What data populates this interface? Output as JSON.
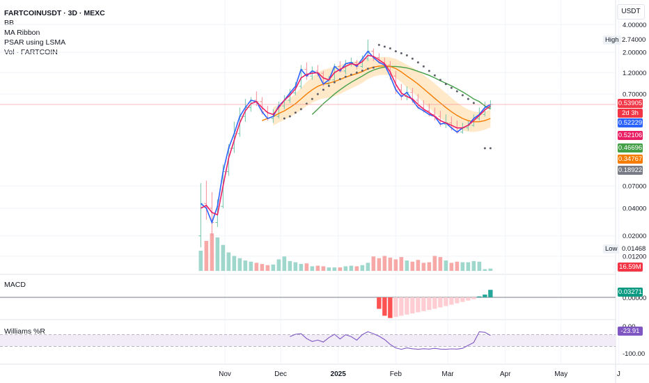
{
  "header": {
    "symbol": "FARTCOINUSDT · 3D · MEXC",
    "indicators": [
      "BB",
      "MA Ribbon",
      "PSAR using LSMA",
      "Vol · FARTCOIN"
    ]
  },
  "axis_unit": "USDT",
  "high_label": "High",
  "high_value": "2.74000",
  "low_label": "Low",
  "low_value": "0.01468",
  "macd_title": "MACD",
  "wr_title": "Williams %R",
  "price_tags": [
    {
      "text": "0.53905",
      "color": "#f23645"
    },
    {
      "text": "2d 3h",
      "color": "#f23645"
    },
    {
      "text": "0.52229",
      "color": "#2962ff"
    },
    {
      "text": "0.52106",
      "color": "#e91e63"
    },
    {
      "text": "0.46696",
      "color": "#43a047"
    },
    {
      "text": "0.34767",
      "color": "#f57c00"
    },
    {
      "text": "0.18922",
      "color": "#787b86"
    }
  ],
  "volume_tag": {
    "text": "16.59M",
    "color": "#f23645"
  },
  "macd_tag": {
    "text": "0.03271",
    "color": "#089981"
  },
  "wr_tag": {
    "text": "-23.91",
    "color": "#7e57c2"
  },
  "chart_data": {
    "type": "candlestick",
    "y_scale": "log",
    "price_ticks": [
      "4.00000",
      "2.00000",
      "1.20000",
      "0.70000",
      "0.07000",
      "0.04000",
      "0.02000",
      "0.01200"
    ],
    "x_ticks": [
      "Nov",
      "Dec",
      "2025",
      "Feb",
      "Mar",
      "Apr",
      "May",
      "J"
    ],
    "macd_ticks": [
      "0.00000"
    ],
    "wr_ticks": [
      "0.00",
      "-100.00"
    ],
    "wr_band": [
      -20,
      -80
    ],
    "dates": [
      "2024-10-19",
      "2024-10-22",
      "2024-10-25",
      "2024-10-28",
      "2024-10-31",
      "2024-11-03",
      "2024-11-06",
      "2024-11-09",
      "2024-11-12",
      "2024-11-15",
      "2024-11-18",
      "2024-11-21",
      "2024-11-24",
      "2024-11-27",
      "2024-11-30",
      "2024-12-03",
      "2024-12-06",
      "2024-12-09",
      "2024-12-12",
      "2024-12-15",
      "2024-12-18",
      "2024-12-21",
      "2024-12-24",
      "2024-12-27",
      "2024-12-30",
      "2025-01-02",
      "2025-01-05",
      "2025-01-08",
      "2025-01-11",
      "2025-01-14",
      "2025-01-17",
      "2025-01-20",
      "2025-01-23",
      "2025-01-26",
      "2025-01-29",
      "2025-02-01",
      "2025-02-04",
      "2025-02-07",
      "2025-02-10",
      "2025-02-13",
      "2025-02-16",
      "2025-02-19",
      "2025-02-22",
      "2025-02-25",
      "2025-02-28",
      "2025-03-03",
      "2025-03-06",
      "2025-03-09",
      "2025-03-12",
      "2025-03-15",
      "2025-03-18",
      "2025-03-21",
      "2025-03-24"
    ],
    "open": [
      0.02,
      0.045,
      0.04,
      0.028,
      0.042,
      0.1,
      0.18,
      0.26,
      0.4,
      0.5,
      0.6,
      0.58,
      0.45,
      0.38,
      0.4,
      0.52,
      0.6,
      0.72,
      0.85,
      1.3,
      1.1,
      1.25,
      1.18,
      0.9,
      1.0,
      1.4,
      1.25,
      1.5,
      1.55,
      1.4,
      1.7,
      2.05,
      1.75,
      1.55,
      1.45,
      1.1,
      0.78,
      0.66,
      0.73,
      0.6,
      0.5,
      0.46,
      0.42,
      0.4,
      0.33,
      0.34,
      0.3,
      0.27,
      0.3,
      0.32,
      0.38,
      0.42,
      0.5
    ],
    "high": [
      0.075,
      0.08,
      0.06,
      0.05,
      0.12,
      0.2,
      0.35,
      0.5,
      0.62,
      0.65,
      0.75,
      0.65,
      0.52,
      0.48,
      0.58,
      0.68,
      0.8,
      0.95,
      1.45,
      1.55,
      1.4,
      1.45,
      1.25,
      1.1,
      1.5,
      1.6,
      1.65,
      1.75,
      1.65,
      1.85,
      2.74,
      2.2,
      1.95,
      1.75,
      1.6,
      1.25,
      0.9,
      0.85,
      0.82,
      0.7,
      0.6,
      0.55,
      0.5,
      0.46,
      0.42,
      0.4,
      0.36,
      0.34,
      0.36,
      0.42,
      0.5,
      0.58,
      0.6
    ],
    "low": [
      0.015,
      0.03,
      0.02,
      0.025,
      0.04,
      0.09,
      0.16,
      0.24,
      0.35,
      0.45,
      0.52,
      0.42,
      0.36,
      0.34,
      0.38,
      0.48,
      0.56,
      0.68,
      0.8,
      1.0,
      1.0,
      1.1,
      0.85,
      0.85,
      0.95,
      1.2,
      1.15,
      1.4,
      1.3,
      1.35,
      1.6,
      1.6,
      1.5,
      1.35,
      1.0,
      0.7,
      0.6,
      0.6,
      0.56,
      0.48,
      0.44,
      0.4,
      0.36,
      0.31,
      0.3,
      0.28,
      0.26,
      0.26,
      0.28,
      0.31,
      0.36,
      0.4,
      0.48
    ],
    "close": [
      0.045,
      0.04,
      0.028,
      0.042,
      0.1,
      0.18,
      0.26,
      0.4,
      0.5,
      0.6,
      0.58,
      0.45,
      0.38,
      0.4,
      0.52,
      0.6,
      0.72,
      0.85,
      1.3,
      1.1,
      1.25,
      1.18,
      0.9,
      1.0,
      1.4,
      1.25,
      1.5,
      1.55,
      1.4,
      1.7,
      2.05,
      1.75,
      1.55,
      1.45,
      1.1,
      0.78,
      0.66,
      0.73,
      0.6,
      0.5,
      0.46,
      0.42,
      0.4,
      0.33,
      0.34,
      0.3,
      0.27,
      0.3,
      0.32,
      0.38,
      0.42,
      0.5,
      0.54
    ],
    "ma_fast": [
      0.04,
      0.043,
      0.036,
      0.034,
      0.07,
      0.14,
      0.22,
      0.34,
      0.46,
      0.55,
      0.58,
      0.5,
      0.44,
      0.42,
      0.5,
      0.6,
      0.68,
      0.8,
      1.05,
      1.15,
      1.18,
      1.2,
      1.05,
      1.0,
      1.2,
      1.3,
      1.4,
      1.5,
      1.45,
      1.58,
      1.85,
      1.8,
      1.65,
      1.5,
      1.22,
      0.9,
      0.72,
      0.66,
      0.62,
      0.54,
      0.48,
      0.44,
      0.4,
      0.36,
      0.34,
      0.32,
      0.3,
      0.3,
      0.32,
      0.36,
      0.41,
      0.47,
      0.52
    ],
    "ma_slow": [
      null,
      null,
      null,
      null,
      null,
      null,
      null,
      null,
      null,
      null,
      null,
      0.36,
      0.38,
      0.4,
      0.43,
      0.46,
      0.5,
      0.55,
      0.62,
      0.7,
      0.78,
      0.85,
      0.9,
      0.92,
      0.96,
      1.01,
      1.07,
      1.12,
      1.17,
      1.23,
      1.32,
      1.38,
      1.41,
      1.42,
      1.4,
      1.33,
      1.22,
      1.1,
      1.0,
      0.9,
      0.8,
      0.71,
      0.63,
      0.56,
      0.5,
      0.45,
      0.41,
      0.38,
      0.36,
      0.35,
      0.35,
      0.36,
      0.38
    ],
    "ma_long": [
      null,
      null,
      null,
      null,
      null,
      null,
      null,
      null,
      null,
      null,
      null,
      null,
      null,
      null,
      null,
      null,
      null,
      null,
      null,
      null,
      0.42,
      0.48,
      0.55,
      0.62,
      0.7,
      0.78,
      0.86,
      0.94,
      1.02,
      1.1,
      1.2,
      1.28,
      1.34,
      1.38,
      1.4,
      1.4,
      1.38,
      1.35,
      1.3,
      1.24,
      1.18,
      1.12,
      1.05,
      0.98,
      0.92,
      0.86,
      0.8,
      0.74,
      0.68,
      0.62,
      0.58,
      0.52,
      0.48
    ],
    "psar": [
      null,
      null,
      null,
      null,
      null,
      null,
      null,
      null,
      null,
      null,
      null,
      null,
      null,
      null,
      null,
      0.38,
      0.4,
      0.44,
      0.48,
      0.55,
      0.62,
      0.7,
      0.78,
      0.86,
      0.94,
      1.02,
      1.08,
      1.14,
      1.2,
      1.26,
      1.32,
      1.36,
      2.4,
      2.3,
      2.2,
      2.05,
      1.95,
      1.85,
      1.7,
      1.55,
      1.4,
      1.25,
      1.12,
      1.0,
      0.9,
      0.82,
      0.75,
      0.68,
      0.62,
      0.56,
      null,
      0.18,
      0.18
    ],
    "volume": [
      3.5,
      5.2,
      6.5,
      5.8,
      4.5,
      3.2,
      2.6,
      2.2,
      1.8,
      1.6,
      1.4,
      1.2,
      1.0,
      1.1,
      2.0,
      2.5,
      1.7,
      1.5,
      1.2,
      1.3,
      0.8,
      0.9,
      0.8,
      0.6,
      0.6,
      0.6,
      0.8,
      0.9,
      0.8,
      1.0,
      1.4,
      2.5,
      2.2,
      2.6,
      2.3,
      2.0,
      2.4,
      1.8,
      1.6,
      1.9,
      1.4,
      1.5,
      2.6,
      2.4,
      1.8,
      1.4,
      1.6,
      1.5,
      1.5,
      1.7,
      1.6,
      0.3,
      0.4
    ],
    "macd_hist": [
      null,
      null,
      null,
      null,
      null,
      null,
      null,
      null,
      null,
      null,
      null,
      null,
      null,
      null,
      null,
      null,
      null,
      null,
      null,
      null,
      null,
      null,
      null,
      null,
      null,
      null,
      null,
      null,
      null,
      null,
      null,
      null,
      -0.05,
      -0.08,
      -0.09,
      -0.085,
      -0.08,
      -0.075,
      -0.07,
      -0.065,
      -0.06,
      -0.055,
      -0.05,
      -0.044,
      -0.038,
      -0.032,
      -0.026,
      -0.02,
      -0.014,
      -0.008,
      0.004,
      0.012,
      0.0327
    ],
    "williams_r": [
      null,
      null,
      null,
      null,
      null,
      null,
      null,
      null,
      null,
      null,
      null,
      null,
      null,
      null,
      null,
      null,
      -30,
      -18,
      -15,
      -40,
      -55,
      -48,
      -58,
      -35,
      -18,
      -42,
      -20,
      -30,
      -48,
      -20,
      -5,
      -15,
      -28,
      -45,
      -70,
      -88,
      -95,
      -88,
      -92,
      -95,
      -92,
      -94,
      -90,
      -94,
      -95,
      -93,
      -94,
      -90,
      -75,
      -60,
      -5,
      -8,
      -24
    ]
  }
}
